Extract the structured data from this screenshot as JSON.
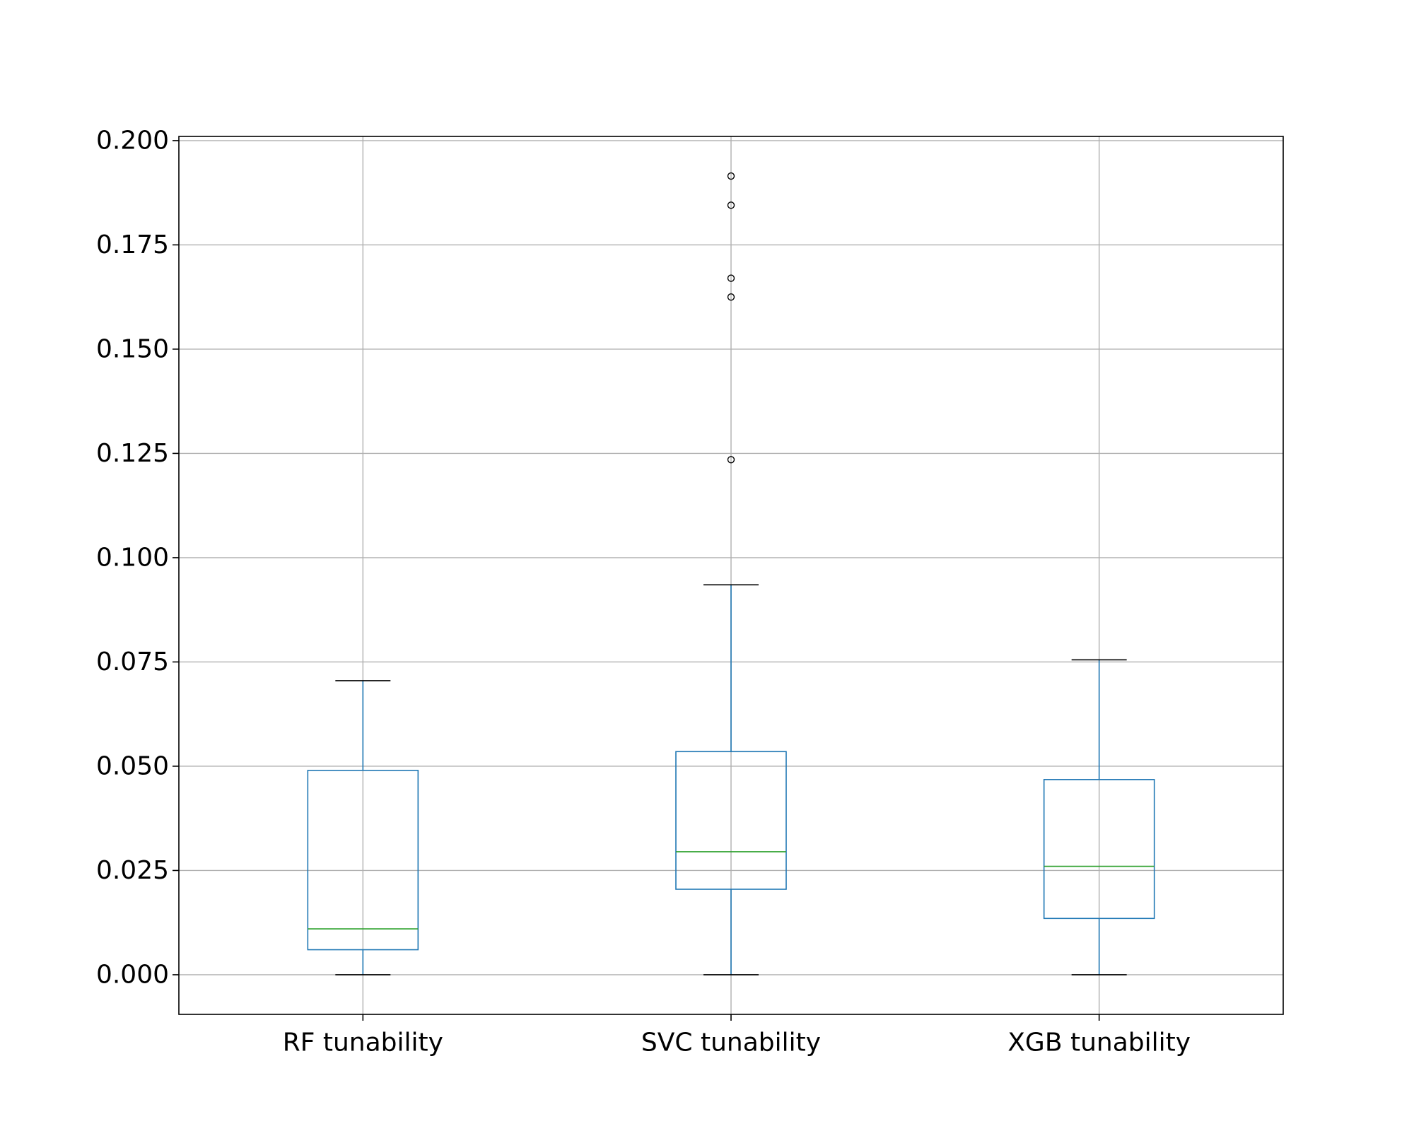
{
  "chart_data": {
    "type": "box",
    "title": "",
    "xlabel": "",
    "ylabel": "",
    "ylim": [
      -0.0095,
      0.201
    ],
    "yticks": [
      0.0,
      0.025,
      0.05,
      0.075,
      0.1,
      0.125,
      0.15,
      0.175,
      0.2
    ],
    "ytick_labels": [
      "0.000",
      "0.025",
      "0.050",
      "0.075",
      "0.100",
      "0.125",
      "0.150",
      "0.175",
      "0.200"
    ],
    "grid": true,
    "categories": [
      "RF tunability",
      "SVC tunability",
      "XGB tunability"
    ],
    "boxes": [
      {
        "category": "RF tunability",
        "whisker_low": 0.0,
        "q1": 0.006,
        "median": 0.011,
        "q3": 0.049,
        "whisker_high": 0.0705,
        "outliers": []
      },
      {
        "category": "SVC tunability",
        "whisker_low": 0.0,
        "q1": 0.0205,
        "median": 0.0295,
        "q3": 0.0535,
        "whisker_high": 0.0935,
        "outliers": [
          0.1235,
          0.1625,
          0.167,
          0.1845,
          0.1915
        ]
      },
      {
        "category": "XGB tunability",
        "whisker_low": 0.0,
        "q1": 0.0135,
        "median": 0.026,
        "q3": 0.0468,
        "whisker_high": 0.0755,
        "outliers": []
      }
    ],
    "colors": {
      "box": "#1f77b4",
      "median": "#2ca02c",
      "caps": "#000000",
      "outlier": "#000000",
      "grid": "#b0b0b0",
      "axis": "#000000"
    }
  }
}
